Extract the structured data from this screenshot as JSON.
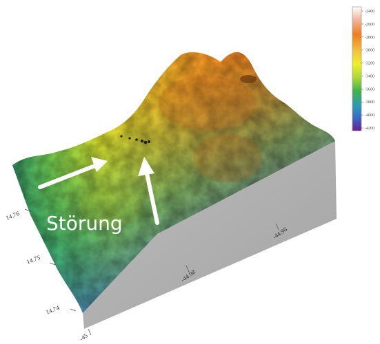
{
  "annotation": {
    "label": "Störung"
  },
  "axes": {
    "lat_ticks": [
      "14.76",
      "14.75",
      "14.74"
    ],
    "lon_ticks": [
      "-44.96",
      "-44.98",
      "-45"
    ]
  },
  "colorbar": {
    "ticks": [
      "-2400",
      "-2600",
      "-2800",
      "-3000",
      "-3200",
      "-3400",
      "-3600",
      "-3800",
      "-4000",
      "-4200"
    ],
    "colors": [
      "#ffffff",
      "#f4b7a0",
      "#ee7d1f",
      "#f5c23c",
      "#eef025",
      "#b5dc35",
      "#3fb449",
      "#2b9bb5",
      "#3a66c4",
      "#6b1d90"
    ]
  }
}
